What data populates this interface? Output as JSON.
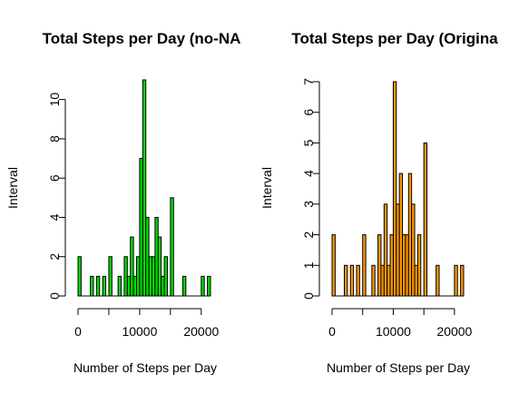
{
  "chart_data": [
    {
      "type": "bar",
      "title": "Total Steps per Day (no-NA",
      "xlabel": "Number of Steps per Day",
      "ylabel": "Interval",
      "color": "#00dd00",
      "xlim": [
        0,
        21500
      ],
      "ylim": [
        0,
        11
      ],
      "x_ticks": [
        0,
        10000,
        20000
      ],
      "x_tick_labels": [
        "0",
        "10000",
        "20000"
      ],
      "y_ticks": [
        0,
        2,
        4,
        6,
        8,
        10
      ],
      "y_tick_labels": [
        "0",
        "2",
        "4",
        "6",
        "8",
        "10"
      ],
      "bin_width": 500,
      "bins": [
        {
          "x0": 0,
          "x1": 500,
          "count": 2
        },
        {
          "x0": 2000,
          "x1": 2500,
          "count": 1
        },
        {
          "x0": 3000,
          "x1": 3500,
          "count": 1
        },
        {
          "x0": 4000,
          "x1": 4500,
          "count": 1
        },
        {
          "x0": 5000,
          "x1": 5500,
          "count": 2
        },
        {
          "x0": 6500,
          "x1": 7000,
          "count": 1
        },
        {
          "x0": 7500,
          "x1": 8000,
          "count": 2
        },
        {
          "x0": 8000,
          "x1": 8500,
          "count": 1
        },
        {
          "x0": 8500,
          "x1": 9000,
          "count": 3
        },
        {
          "x0": 9000,
          "x1": 9500,
          "count": 1
        },
        {
          "x0": 9500,
          "x1": 10000,
          "count": 2
        },
        {
          "x0": 10000,
          "x1": 10500,
          "count": 7
        },
        {
          "x0": 10500,
          "x1": 11000,
          "count": 11
        },
        {
          "x0": 11000,
          "x1": 11500,
          "count": 4
        },
        {
          "x0": 11500,
          "x1": 12000,
          "count": 2
        },
        {
          "x0": 12000,
          "x1": 12500,
          "count": 2
        },
        {
          "x0": 12500,
          "x1": 13000,
          "count": 4
        },
        {
          "x0": 13000,
          "x1": 13500,
          "count": 3
        },
        {
          "x0": 13500,
          "x1": 14000,
          "count": 1
        },
        {
          "x0": 14000,
          "x1": 14500,
          "count": 2
        },
        {
          "x0": 15000,
          "x1": 15500,
          "count": 5
        },
        {
          "x0": 17000,
          "x1": 17500,
          "count": 1
        },
        {
          "x0": 20000,
          "x1": 20500,
          "count": 1
        },
        {
          "x0": 21000,
          "x1": 21500,
          "count": 1
        }
      ]
    },
    {
      "type": "bar",
      "title": "Total Steps per Day (Origina",
      "xlabel": "Number of Steps per Day",
      "ylabel": "Interval",
      "color": "#ff9900",
      "xlim": [
        0,
        21500
      ],
      "ylim": [
        0,
        7
      ],
      "x_ticks": [
        0,
        10000,
        20000
      ],
      "x_tick_labels": [
        "0",
        "10000",
        "20000"
      ],
      "y_ticks": [
        0,
        1,
        2,
        3,
        4,
        5,
        6,
        7
      ],
      "y_tick_labels": [
        "0",
        "1",
        "2",
        "3",
        "4",
        "5",
        "6",
        "7"
      ],
      "bin_width": 500,
      "bins": [
        {
          "x0": 0,
          "x1": 500,
          "count": 2
        },
        {
          "x0": 2000,
          "x1": 2500,
          "count": 1
        },
        {
          "x0": 3000,
          "x1": 3500,
          "count": 1
        },
        {
          "x0": 4000,
          "x1": 4500,
          "count": 1
        },
        {
          "x0": 5000,
          "x1": 5500,
          "count": 2
        },
        {
          "x0": 6500,
          "x1": 7000,
          "count": 1
        },
        {
          "x0": 7500,
          "x1": 8000,
          "count": 2
        },
        {
          "x0": 8000,
          "x1": 8500,
          "count": 1
        },
        {
          "x0": 8500,
          "x1": 9000,
          "count": 3
        },
        {
          "x0": 9000,
          "x1": 9500,
          "count": 1
        },
        {
          "x0": 9500,
          "x1": 10000,
          "count": 2
        },
        {
          "x0": 10000,
          "x1": 10500,
          "count": 7
        },
        {
          "x0": 10500,
          "x1": 11000,
          "count": 3
        },
        {
          "x0": 11000,
          "x1": 11500,
          "count": 4
        },
        {
          "x0": 11500,
          "x1": 12000,
          "count": 2
        },
        {
          "x0": 12000,
          "x1": 12500,
          "count": 2
        },
        {
          "x0": 12500,
          "x1": 13000,
          "count": 4
        },
        {
          "x0": 13000,
          "x1": 13500,
          "count": 3
        },
        {
          "x0": 13500,
          "x1": 14000,
          "count": 1
        },
        {
          "x0": 14000,
          "x1": 14500,
          "count": 2
        },
        {
          "x0": 15000,
          "x1": 15500,
          "count": 5
        },
        {
          "x0": 17000,
          "x1": 17500,
          "count": 1
        },
        {
          "x0": 20000,
          "x1": 20500,
          "count": 1
        },
        {
          "x0": 21000,
          "x1": 21500,
          "count": 1
        }
      ]
    }
  ]
}
